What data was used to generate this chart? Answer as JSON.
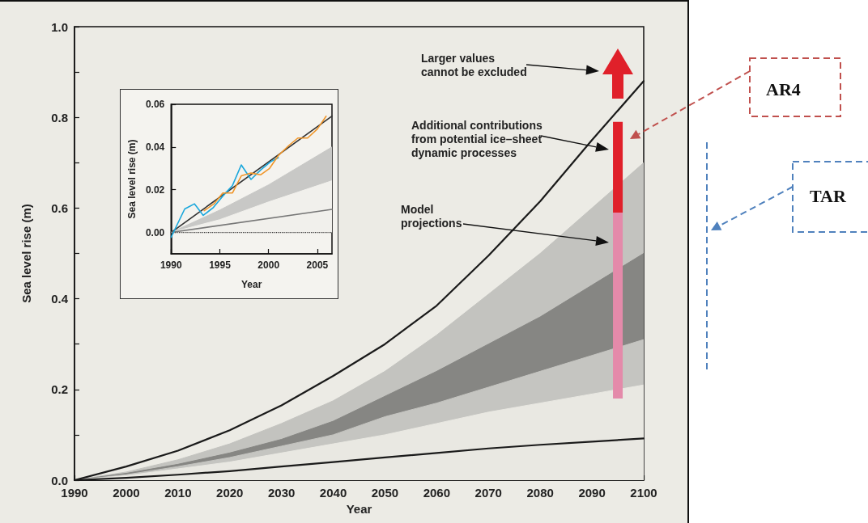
{
  "chart_data": [
    {
      "type": "line",
      "xlabel": "Year",
      "ylabel": "Sea level rise (m)",
      "marker": "none",
      "grid": false,
      "x": [
        1990,
        2000,
        2010,
        2020,
        2030,
        2040,
        2050,
        2060,
        2070,
        2080,
        2090,
        2100
      ],
      "xlim": [
        1990,
        2100
      ],
      "xticks": [
        1990,
        2000,
        2010,
        2020,
        2030,
        2040,
        2050,
        2060,
        2070,
        2080,
        2090,
        2100
      ],
      "ylim": [
        0,
        1
      ],
      "yticks": [
        {
          "value": 0,
          "label": "0.0"
        },
        {
          "value": 0.1,
          "label": null
        },
        {
          "value": 0.2,
          "label": "0.2"
        },
        {
          "value": 0.3,
          "label": null
        },
        {
          "value": 0.4,
          "label": "0.4"
        },
        {
          "value": 0.5,
          "label": null
        },
        {
          "value": 0.6,
          "label": "0.6"
        },
        {
          "value": 0.7,
          "label": null
        },
        {
          "value": 0.8,
          "label": "0.8"
        },
        {
          "value": 0.9,
          "label": null
        },
        {
          "value": 1,
          "label": "1.0"
        }
      ],
      "series": [
        {
          "type": "area",
          "color": "#c3c3bf",
          "values": [
            0,
            0.018,
            0.045,
            0.08,
            0.125,
            0.175,
            0.24,
            0.32,
            0.41,
            0.5,
            0.6,
            0.7
          ]
        },
        {
          "type": "area",
          "color": "#868683",
          "values": [
            0,
            0.015,
            0.035,
            0.06,
            0.09,
            0.13,
            0.185,
            0.24,
            0.3,
            0.36,
            0.43,
            0.5
          ]
        },
        {
          "type": "area",
          "color": "#c5c5c1",
          "values": [
            0,
            0.012,
            0.03,
            0.05,
            0.075,
            0.1,
            0.14,
            0.17,
            0.205,
            0.24,
            0.275,
            0.31
          ]
        },
        {
          "type": "area",
          "color": "#e9e8e2",
          "values": [
            0,
            0.01,
            0.025,
            0.04,
            0.06,
            0.08,
            0.1,
            0.125,
            0.15,
            0.17,
            0.19,
            0.21
          ]
        },
        {
          "color": "#1a1a1a",
          "values": [
            0,
            0.03,
            0.065,
            0.11,
            0.165,
            0.23,
            0.3,
            0.385,
            0.495,
            0.615,
            0.75,
            0.88
          ]
        },
        {
          "color": "#1a1a1a",
          "values": [
            0,
            0.005,
            0.012,
            0.02,
            0.03,
            0.04,
            0.05,
            0.06,
            0.07,
            0.078,
            0.085,
            0.092
          ]
        },
        {
          "type": "bar",
          "color": "#e48aaa",
          "x": [
            2095
          ],
          "base": [
            0.18
          ],
          "values": [
            0.41
          ]
        },
        {
          "type": "bar",
          "color": "#e0202a",
          "x": [
            2095
          ],
          "base": [
            0.59
          ],
          "values": [
            0.2
          ]
        }
      ],
      "annotations": [
        "Larger values\ncannot be excluded",
        "Additional contributions\nfrom potential ice–sheet\ndynamic processes",
        "Model\nprojections",
        "AR4",
        "TAR"
      ]
    },
    {
      "type": "line",
      "xlabel": "Year",
      "ylabel": "Sea level rise (m)",
      "marker": "none",
      "grid": false,
      "xlim": [
        1990,
        2006.5
      ],
      "xticks": [
        1990,
        1995,
        2000,
        2005
      ],
      "ylim": [
        -0.01,
        0.06
      ],
      "yticks": [
        {
          "value": 0,
          "label": "0.00"
        },
        {
          "value": 0.02,
          "label": "0.02"
        },
        {
          "value": 0.04,
          "label": "0.04"
        },
        {
          "value": 0.06,
          "label": "0.06"
        }
      ],
      "series": [
        {
          "type": "area",
          "color": "#c8c8c6",
          "x": [
            1990,
            1995,
            2000,
            2006.5
          ],
          "values": [
            0,
            0.0105,
            0.0223,
            0.04
          ]
        },
        {
          "type": "area",
          "color": "#f1f0ec",
          "x": [
            1990,
            1995,
            2000,
            2006.5
          ],
          "values": [
            0,
            0.006,
            0.0143,
            0.0242
          ]
        },
        {
          "type": "line",
          "color": "#333333",
          "x": [
            1990,
            2006.5
          ],
          "values": [
            0,
            0.0545
          ]
        },
        {
          "type": "line",
          "color": "#777777",
          "x": [
            1990,
            2006.5
          ],
          "values": [
            0,
            0.0108
          ]
        },
        {
          "type": "line",
          "color": "#1aa7dc",
          "x": [
            1990,
            1991.4,
            1992.4,
            1993.3,
            1994.3,
            1995.3,
            1996.3,
            1997.2,
            1998.2,
            1999.2,
            2000.2,
            2001.0
          ],
          "values": [
            -0.0023,
            0.011,
            0.0134,
            0.008,
            0.0115,
            0.017,
            0.022,
            0.0316,
            0.0248,
            0.0293,
            0.0331,
            0.035
          ]
        },
        {
          "color": "#f0962a",
          "x": [
            1993.4,
            1994.4,
            1995.3,
            1996.3,
            1997.2,
            1998.2,
            1999.2,
            2000.1,
            2001.0,
            2002.1,
            2003.0,
            2004.0,
            2005.0,
            2005.9
          ],
          "values": [
            0.0102,
            0.0134,
            0.0185,
            0.0185,
            0.0265,
            0.0278,
            0.027,
            0.03,
            0.036,
            0.0408,
            0.0442,
            0.0442,
            0.0484,
            0.0544
          ]
        }
      ],
      "ref_lines": [
        {
          "axis": "y",
          "value": 0,
          "color": "#333333",
          "line_style": "dotted"
        }
      ]
    }
  ]
}
